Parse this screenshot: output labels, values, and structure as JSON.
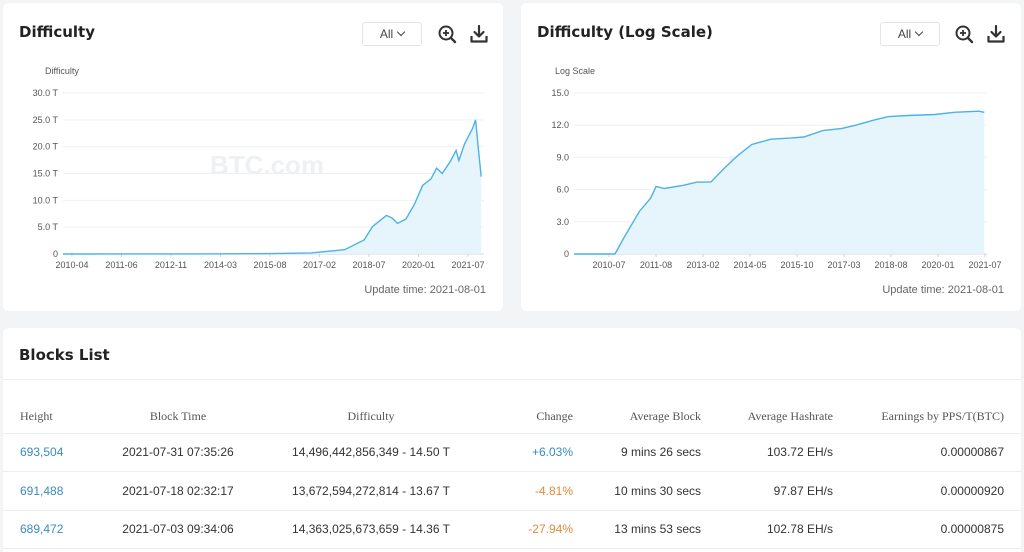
{
  "colors": {
    "accent": "#4cb2e6",
    "link": "#3b8ac4",
    "negative": "#e08a3a",
    "fill": "#e6f5fc"
  },
  "watermark": "BTC.com",
  "difficulty_card": {
    "title": "Difficulty",
    "range": "All",
    "zoom_icon": "zoom-in-icon",
    "download_icon": "download-icon",
    "update_time": "Update time: 2021-08-01"
  },
  "log_card": {
    "title": "Difficulty (Log Scale)",
    "range": "All",
    "zoom_icon": "zoom-in-icon",
    "download_icon": "download-icon",
    "update_time": "Update time: 2021-08-01"
  },
  "blocks": {
    "title": "Blocks List",
    "columns": [
      "Height",
      "Block Time",
      "Difficulty",
      "Change",
      "Average Block",
      "Average Hashrate",
      "Earnings by PPS/T(BTC)"
    ],
    "rows": [
      {
        "height": "693,504",
        "time": "2021-07-31 07:35:26",
        "difficulty": "14,496,442,856,349 - 14.50 T",
        "change": "+6.03%",
        "avg_block": "9 mins 26 secs",
        "hashrate": "103.72 EH/s",
        "earnings": "0.00000867"
      },
      {
        "height": "691,488",
        "time": "2021-07-18 02:32:17",
        "difficulty": "13,672,594,272,814 - 13.67 T",
        "change": "-4.81%",
        "avg_block": "10 mins 30 secs",
        "hashrate": "97.87 EH/s",
        "earnings": "0.00000920"
      },
      {
        "height": "689,472",
        "time": "2021-07-03 09:34:06",
        "difficulty": "14,363,025,673,659 - 14.36 T",
        "change": "-27.94%",
        "avg_block": "13 mins 53 secs",
        "hashrate": "102.78 EH/s",
        "earnings": "0.00000875"
      }
    ]
  },
  "chart_data": [
    {
      "type": "area",
      "title": "Difficulty",
      "ylabel": "Difficulty",
      "ylim": [
        0,
        30
      ],
      "y_ticks": [
        "0",
        "5.0 T",
        "10.0 T",
        "15.0 T",
        "20.0 T",
        "25.0 T",
        "30.0 T"
      ],
      "x_ticks": [
        "2010-04",
        "2011-06",
        "2012-11",
        "2014-03",
        "2015-08",
        "2017-02",
        "2018-07",
        "2020-01",
        "2021-07"
      ],
      "grid": true,
      "series": [
        {
          "x": [
            "2009-01",
            "2013-01",
            "2015-01",
            "2016-06",
            "2017-06",
            "2018-01",
            "2018-04",
            "2018-09",
            "2018-11",
            "2019-01",
            "2019-04",
            "2019-07",
            "2019-10",
            "2020-01",
            "2020-03",
            "2020-05",
            "2020-08",
            "2020-10",
            "2020-11",
            "2021-01",
            "2021-04",
            "2021-05",
            "2021-06",
            "2021-07"
          ],
          "y": [
            0,
            0.01,
            0.05,
            0.2,
            0.8,
            2.6,
            5.1,
            7.2,
            6.7,
            5.7,
            6.5,
            9.2,
            12.8,
            14.0,
            16.0,
            15.0,
            17.3,
            19.3,
            17.4,
            20.5,
            23.5,
            25.0,
            19.5,
            14.4
          ]
        }
      ]
    },
    {
      "type": "area",
      "title": "Difficulty (Log Scale)",
      "ylabel": "Log Scale",
      "ylim": [
        0,
        15
      ],
      "y_ticks": [
        "0",
        "3.0",
        "6.0",
        "9.0",
        "12.0",
        "15.0"
      ],
      "x_ticks": [
        "2010-07",
        "2011-08",
        "2013-02",
        "2014-05",
        "2015-10",
        "2017-03",
        "2018-08",
        "2020-01",
        "2021-07"
      ],
      "grid": true,
      "series": [
        {
          "x": [
            "2009-01",
            "2010-04",
            "2010-07",
            "2010-10",
            "2011-01",
            "2011-05",
            "2011-07",
            "2011-10",
            "2012-05",
            "2012-10",
            "2013-03",
            "2013-08",
            "2014-01",
            "2014-06",
            "2015-01",
            "2015-08",
            "2016-01",
            "2016-08",
            "2017-03",
            "2017-08",
            "2018-03",
            "2018-08",
            "2019-03",
            "2020-01",
            "2020-08",
            "2021-05",
            "2021-07"
          ],
          "y": [
            0,
            0,
            1.4,
            2.7,
            4.0,
            5.2,
            6.3,
            6.1,
            6.4,
            6.7,
            6.7,
            8.0,
            9.2,
            10.2,
            10.7,
            10.8,
            10.9,
            11.5,
            11.7,
            12.0,
            12.5,
            12.8,
            12.9,
            13.0,
            13.2,
            13.3,
            13.2
          ]
        }
      ]
    }
  ]
}
